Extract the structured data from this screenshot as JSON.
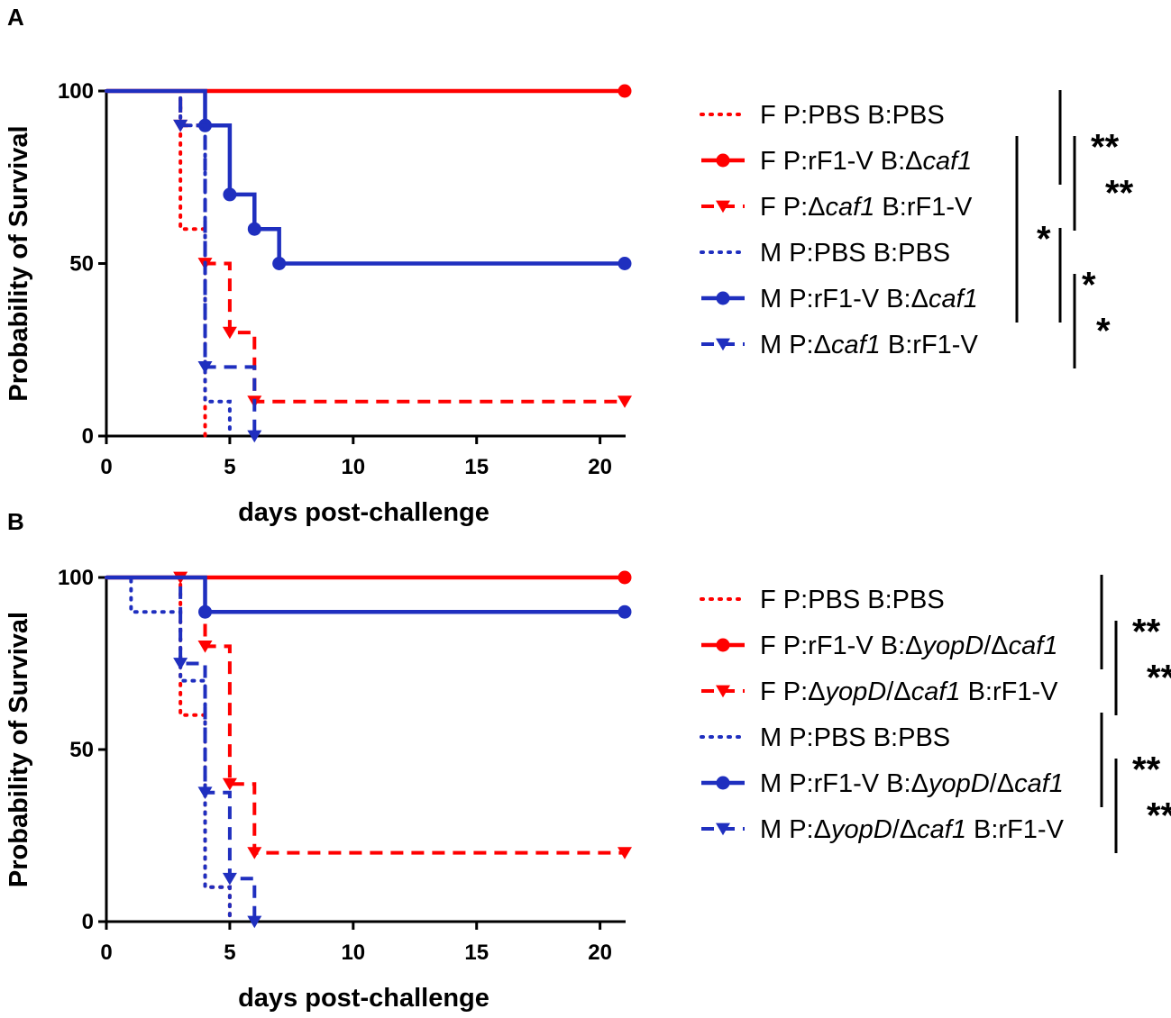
{
  "colors": {
    "F": "#ff0000",
    "M": "#1f2fbf",
    "axis": "#000000"
  },
  "chart_data": [
    {
      "type": "line",
      "panel_label": "A",
      "xlabel": "days post-challenge",
      "ylabel": "Probability of Survival",
      "xlim": [
        0,
        21
      ],
      "ylim": [
        0,
        100
      ],
      "xticks": [
        0,
        5,
        10,
        15,
        20
      ],
      "yticks": [
        0,
        50,
        100
      ],
      "series": [
        {
          "name": "F P:PBS B:PBS",
          "label": [
            "F P:PBS B:PBS"
          ],
          "group": "F",
          "style": "dotted",
          "marker": "none",
          "x": [
            0,
            3,
            4
          ],
          "y": [
            100,
            60,
            0
          ]
        },
        {
          "name": "F P:rF1-V B:Δcaf1",
          "label": [
            "F P:rF1-V B:Δ",
            "caf1"
          ],
          "group": "F",
          "style": "solid",
          "marker": "circle",
          "x": [
            0,
            21
          ],
          "y": [
            100,
            100
          ]
        },
        {
          "name": "F P:Δcaf1 B:rF1-V",
          "label": [
            "F P:Δ",
            "caf1",
            " B:rF1-V"
          ],
          "group": "F",
          "style": "dashed",
          "marker": "triangle",
          "x": [
            0,
            3,
            4,
            5,
            6,
            21
          ],
          "y": [
            100,
            90,
            50,
            30,
            10,
            10
          ]
        },
        {
          "name": "M P:PBS B:PBS",
          "label": [
            "M P:PBS B:PBS"
          ],
          "group": "M",
          "style": "dotted",
          "marker": "none",
          "x": [
            0,
            3,
            4,
            5
          ],
          "y": [
            100,
            90,
            10,
            0
          ]
        },
        {
          "name": "M P:rF1-V B:Δcaf1",
          "label": [
            "M P:rF1-V B:Δ",
            "caf1"
          ],
          "group": "M",
          "style": "solid",
          "marker": "circle",
          "x": [
            0,
            4,
            5,
            6,
            7,
            21
          ],
          "y": [
            100,
            90,
            70,
            60,
            50,
            50
          ]
        },
        {
          "name": "M P:Δcaf1 B:rF1-V",
          "label": [
            "M P:Δ",
            "caf1",
            " B:rF1-V"
          ],
          "group": "M",
          "style": "dashed",
          "marker": "triangle",
          "x": [
            0,
            3,
            4,
            6
          ],
          "y": [
            100,
            90,
            20,
            0
          ]
        }
      ],
      "significance": [
        {
          "rows": [
            0,
            1
          ],
          "label": "**"
        },
        {
          "rows": [
            1,
            2
          ],
          "label": "**"
        },
        {
          "rows": [
            1,
            4
          ],
          "label": "*"
        },
        {
          "rows": [
            3,
            4
          ],
          "label": "*"
        },
        {
          "rows": [
            4,
            5
          ],
          "label": "*"
        }
      ]
    },
    {
      "type": "line",
      "panel_label": "B",
      "xlabel": "days post-challenge",
      "ylabel": "Probability of Survival",
      "xlim": [
        0,
        21
      ],
      "ylim": [
        0,
        100
      ],
      "xticks": [
        0,
        5,
        10,
        15,
        20
      ],
      "yticks": [
        0,
        50,
        100
      ],
      "series": [
        {
          "name": "F P:PBS B:PBS",
          "label": [
            "F P:PBS B:PBS"
          ],
          "group": "F",
          "style": "dotted",
          "marker": "none",
          "x": [
            0,
            3,
            4,
            5
          ],
          "y": [
            100,
            60,
            10,
            0
          ]
        },
        {
          "name": "F P:rF1-V B:ΔyopD/Δcaf1",
          "label": [
            "F P:rF1-V B:Δ",
            "yopD",
            "/Δ",
            "caf1"
          ],
          "group": "F",
          "style": "solid",
          "marker": "circle",
          "x": [
            0,
            21
          ],
          "y": [
            100,
            100
          ]
        },
        {
          "name": "F P:ΔyopD/Δcaf1 B:rF1-V",
          "label": [
            "F P:Δ",
            "yopD",
            "/Δ",
            "caf1",
            " B:rF1-V"
          ],
          "group": "F",
          "style": "dashed",
          "marker": "triangle",
          "x": [
            0,
            3,
            4,
            5,
            6,
            21
          ],
          "y": [
            100,
            100,
            80,
            40,
            20,
            20
          ]
        },
        {
          "name": "M P:PBS B:PBS",
          "label": [
            "M P:PBS B:PBS"
          ],
          "group": "M",
          "style": "dotted",
          "marker": "none",
          "x": [
            0,
            1,
            3,
            4,
            5
          ],
          "y": [
            100,
            90,
            70,
            10,
            0
          ]
        },
        {
          "name": "M P:rF1-V B:ΔyopD/Δcaf1",
          "label": [
            "M P:rF1-V B:Δ",
            "yopD",
            "/Δ",
            "caf1"
          ],
          "group": "M",
          "style": "solid",
          "marker": "circle",
          "x": [
            0,
            4,
            21
          ],
          "y": [
            100,
            90,
            90
          ]
        },
        {
          "name": "M P:ΔyopD/Δcaf1 B:rF1-V",
          "label": [
            "M P:Δ",
            "yopD",
            "/Δ",
            "caf1",
            " B:rF1-V"
          ],
          "group": "M",
          "style": "dashed",
          "marker": "triangle",
          "x": [
            0,
            3,
            4,
            5,
            6
          ],
          "y": [
            100,
            75,
            37.5,
            12.5,
            0
          ]
        }
      ],
      "significance": [
        {
          "rows": [
            0,
            1
          ],
          "label": "**"
        },
        {
          "rows": [
            1,
            2
          ],
          "label": "**"
        },
        {
          "rows": [
            3,
            4
          ],
          "label": "**"
        },
        {
          "rows": [
            4,
            5
          ],
          "label": "**"
        }
      ]
    }
  ]
}
